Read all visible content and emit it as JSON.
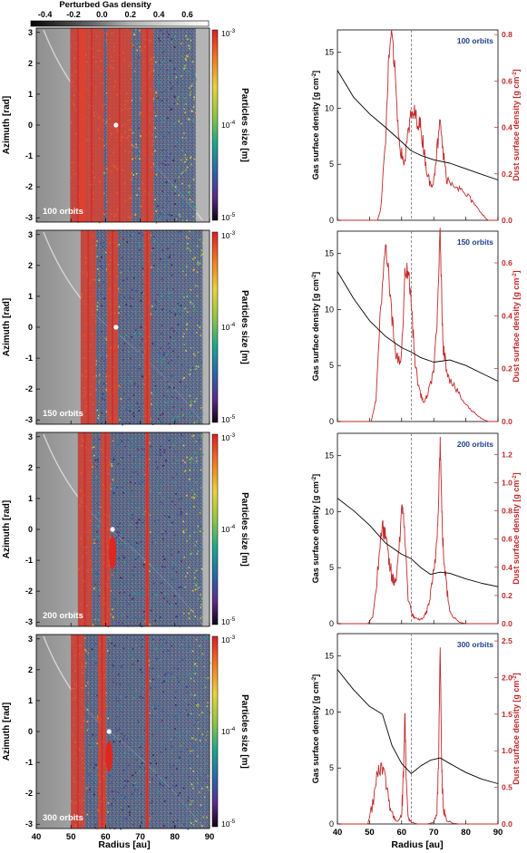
{
  "colorbar_top": {
    "title": "Perturbed  Gas density",
    "ticks": [
      "-0.4",
      "-0.2",
      "0.0",
      "0.2",
      "0.4",
      "0.6"
    ],
    "range": [
      -0.5,
      0.75
    ]
  },
  "left_maps": {
    "xlabel": "Radius [au]",
    "ylabel": "Azimuth [rad]",
    "xticks": [
      "40",
      "50",
      "60",
      "70",
      "80",
      "90"
    ],
    "xrange": [
      40,
      90
    ],
    "yticks": [
      "3",
      "2",
      "1",
      "0",
      "-1",
      "-2",
      "-3"
    ],
    "yrange": [
      -3.14,
      3.14
    ],
    "colorbar_label": "Particles size [m]",
    "colorbar_ticks": [
      "10",
      "10",
      "10"
    ],
    "colorbar_exponents": [
      "-3",
      "-4",
      "-5"
    ],
    "panels": [
      {
        "label": "100 orbits",
        "planet_r": 63,
        "planet_phi": 0.0,
        "rings": [
          {
            "r": 52,
            "halfwidth": 2.2,
            "type": "edge",
            "intensity": 1.0
          },
          {
            "r": 56,
            "halfwidth": 3.5,
            "type": "band",
            "intensity": 0.9
          },
          {
            "r": 64,
            "halfwidth": 3.5,
            "type": "band",
            "intensity": 0.85
          },
          {
            "r": 72,
            "halfwidth": 1.8,
            "type": "band",
            "intensity": 1.0
          }
        ],
        "outer_fade": 86
      },
      {
        "label": "150 orbits",
        "planet_r": 63,
        "planet_phi": 0.0,
        "rings": [
          {
            "r": 55,
            "halfwidth": 2.2,
            "type": "band",
            "intensity": 1.0
          },
          {
            "r": 62,
            "halfwidth": 1.6,
            "type": "band",
            "intensity": 1.0
          },
          {
            "r": 72,
            "halfwidth": 1.0,
            "type": "band",
            "intensity": 1.0
          }
        ],
        "outer_fade": 88
      },
      {
        "label": "200 orbits",
        "planet_r": 62,
        "planet_phi": 0.0,
        "rings": [
          {
            "r": 54,
            "halfwidth": 2.0,
            "type": "band",
            "intensity": 1.0
          },
          {
            "r": 60,
            "halfwidth": 1.4,
            "type": "band",
            "intensity": 1.0
          },
          {
            "r": 72,
            "halfwidth": 0.6,
            "type": "band",
            "intensity": 1.0
          }
        ],
        "clump": {
          "r": 62,
          "phi_min": -1.3,
          "phi_max": -0.2
        },
        "outer_fade": 88
      },
      {
        "label": "300 orbits",
        "planet_r": 61,
        "planet_phi": 0.0,
        "rings": [
          {
            "r": 52,
            "halfwidth": 2.0,
            "type": "band",
            "intensity": 1.0
          },
          {
            "r": 59,
            "halfwidth": 1.2,
            "type": "band",
            "intensity": 1.0
          },
          {
            "r": 72,
            "halfwidth": 0.5,
            "type": "band",
            "intensity": 1.0
          }
        ],
        "clump": {
          "r": 61,
          "phi_min": -1.3,
          "phi_max": -0.3
        },
        "outer_fade": 90
      }
    ]
  },
  "right_profiles": {
    "xlabel": "Radius [au]",
    "ylabel_left": "Gas surface density [g cm",
    "ylabel_left_exp": "-2",
    "ylabel_right": "Dust surface density [g cm",
    "ylabel_right_exp": "-2",
    "xticks": [
      "40",
      "50",
      "60",
      "70",
      "80",
      "90"
    ],
    "xrange": [
      40,
      90
    ],
    "planet_line_x": 63,
    "gas_color": "#000000",
    "dust_color": "#c0282a",
    "label_color": "#1f3f8f",
    "panels": [
      {
        "label": "100 orbits",
        "gas_ylim": [
          0,
          17
        ],
        "gas_ticks": [
          "0",
          "5",
          "10",
          "15"
        ],
        "dust_ylim": [
          0,
          0.82
        ],
        "dust_ticks": [
          "0.0",
          "0.2",
          "0.4",
          "0.6",
          "0.8"
        ],
        "gas_r": [
          40,
          45,
          50,
          55,
          60,
          63,
          66,
          70,
          75,
          80,
          85,
          90
        ],
        "gas_v": [
          13.4,
          11.0,
          9.5,
          8.3,
          7.0,
          6.2,
          5.8,
          5.4,
          5.1,
          4.6,
          4.1,
          3.6
        ],
        "dust_r": [
          52.5,
          53.5,
          55,
          56,
          57,
          58,
          59,
          60,
          61,
          62,
          63,
          64,
          65,
          66,
          67,
          68,
          69,
          70,
          71,
          72,
          73,
          74,
          75,
          77,
          79,
          81,
          83,
          85,
          86,
          87,
          88
        ],
        "dust_v": [
          0.0,
          0.05,
          0.35,
          0.7,
          0.8,
          0.62,
          0.38,
          0.28,
          0.25,
          0.38,
          0.45,
          0.46,
          0.43,
          0.4,
          0.3,
          0.2,
          0.15,
          0.18,
          0.3,
          0.42,
          0.28,
          0.18,
          0.17,
          0.15,
          0.12,
          0.1,
          0.06,
          0.03,
          0.01,
          0.0,
          0.0
        ]
      },
      {
        "label": "150 orbits",
        "gas_ylim": [
          0,
          17
        ],
        "gas_ticks": [
          "0",
          "5",
          "10",
          "15"
        ],
        "dust_ylim": [
          0,
          0.72
        ],
        "dust_ticks": [
          "0.0",
          "0.2",
          "0.4",
          "0.6"
        ],
        "gas_r": [
          40,
          45,
          50,
          55,
          60,
          63,
          66,
          70,
          75,
          80,
          85,
          90
        ],
        "gas_v": [
          13.4,
          11.0,
          9.0,
          7.6,
          6.6,
          6.2,
          5.7,
          5.3,
          5.5,
          5.0,
          4.3,
          3.6
        ],
        "dust_r": [
          50.5,
          52,
          53.5,
          55,
          56,
          57,
          58,
          59,
          60,
          61,
          62,
          63,
          64,
          65,
          66,
          67,
          68,
          69,
          70,
          71,
          71.5,
          72,
          72.5,
          73,
          74,
          75,
          77,
          79,
          81,
          83,
          85,
          87,
          88
        ],
        "dust_v": [
          0.0,
          0.08,
          0.45,
          0.65,
          0.55,
          0.38,
          0.28,
          0.22,
          0.25,
          0.55,
          0.58,
          0.45,
          0.25,
          0.15,
          0.1,
          0.07,
          0.1,
          0.14,
          0.2,
          0.35,
          0.55,
          0.72,
          0.45,
          0.28,
          0.2,
          0.16,
          0.12,
          0.08,
          0.05,
          0.03,
          0.01,
          0.0,
          0.0
        ]
      },
      {
        "label": "200 orbits",
        "gas_ylim": [
          0,
          17
        ],
        "gas_ticks": [
          "0",
          "5",
          "10",
          "15"
        ],
        "dust_ylim": [
          0,
          1.35
        ],
        "dust_ticks": [
          "0.0",
          "0.2",
          "0.4",
          "0.6",
          "0.8",
          "1.0",
          "1.2"
        ],
        "gas_r": [
          40,
          45,
          50,
          55,
          60,
          63,
          66,
          69,
          72,
          75,
          80,
          85,
          90
        ],
        "gas_v": [
          11.2,
          10.1,
          8.8,
          7.2,
          6.2,
          5.8,
          5.0,
          4.4,
          4.6,
          4.5,
          4.0,
          3.6,
          3.3
        ],
        "dust_r": [
          49.5,
          51,
          52.5,
          54,
          55,
          56,
          57,
          58,
          59,
          60,
          60.5,
          61,
          62,
          63,
          64,
          65,
          66,
          67,
          68,
          69,
          70,
          71,
          71.5,
          72,
          72.5,
          73,
          74,
          75,
          76,
          78,
          80
        ],
        "dust_v": [
          0.0,
          0.05,
          0.35,
          0.7,
          0.6,
          0.45,
          0.32,
          0.28,
          0.5,
          0.78,
          0.82,
          0.6,
          0.2,
          0.08,
          0.04,
          0.03,
          0.03,
          0.05,
          0.1,
          0.2,
          0.35,
          0.6,
          0.9,
          1.3,
          0.8,
          0.5,
          0.25,
          0.1,
          0.05,
          0.01,
          0.0
        ]
      },
      {
        "label": "300 orbits",
        "gas_ylim": [
          0,
          17
        ],
        "gas_ticks": [
          "0",
          "5",
          "10",
          "15"
        ],
        "dust_ylim": [
          0,
          2.6
        ],
        "dust_ticks": [
          "0.0",
          "0.5",
          "1.0",
          "1.5",
          "2.0",
          "2.5"
        ],
        "gas_r": [
          40,
          45,
          50,
          54,
          57,
          60,
          63,
          66,
          69,
          72,
          75,
          80,
          85,
          90
        ],
        "gas_v": [
          13.8,
          12.0,
          10.5,
          9.8,
          7.0,
          5.4,
          4.5,
          5.2,
          5.7,
          5.9,
          5.4,
          4.6,
          4.0,
          3.6
        ],
        "dust_r": [
          49.5,
          51,
          52.5,
          53.5,
          55,
          56,
          57,
          58,
          59,
          60,
          60.5,
          61,
          61.5,
          62,
          63,
          65,
          68,
          70,
          71,
          71.5,
          72,
          72.5,
          73,
          74,
          76,
          78
        ],
        "dust_v": [
          0.0,
          0.3,
          0.75,
          0.8,
          0.6,
          0.35,
          0.15,
          0.05,
          0.05,
          0.15,
          0.6,
          1.6,
          0.5,
          0.1,
          0.02,
          0.0,
          0.0,
          0.02,
          0.15,
          0.8,
          2.5,
          0.7,
          0.2,
          0.05,
          0.01,
          0.0
        ]
      }
    ]
  },
  "chart_data": [
    {
      "type": "heatmap",
      "title": "Perturbed  Gas density",
      "xlabel": "Radius [au]",
      "ylabel": "Azimuth [rad]",
      "xlim": [
        40,
        90
      ],
      "ylim": [
        -3.14,
        3.14
      ],
      "colorbar": "Particles size [m]",
      "panels": [
        "100 orbits",
        "150 orbits",
        "200 orbits",
        "300 orbits"
      ]
    },
    {
      "type": "line",
      "xlabel": "Radius [au]",
      "ylabel": "Gas surface density [g cm-2]",
      "y2label": "Dust surface density [g cm-2]",
      "xlim": [
        40,
        90
      ],
      "panels": [
        "100 orbits",
        "150 orbits",
        "200 orbits",
        "300 orbits"
      ],
      "series": [
        {
          "name": "Gas surface density"
        },
        {
          "name": "Dust surface density"
        }
      ]
    }
  ]
}
